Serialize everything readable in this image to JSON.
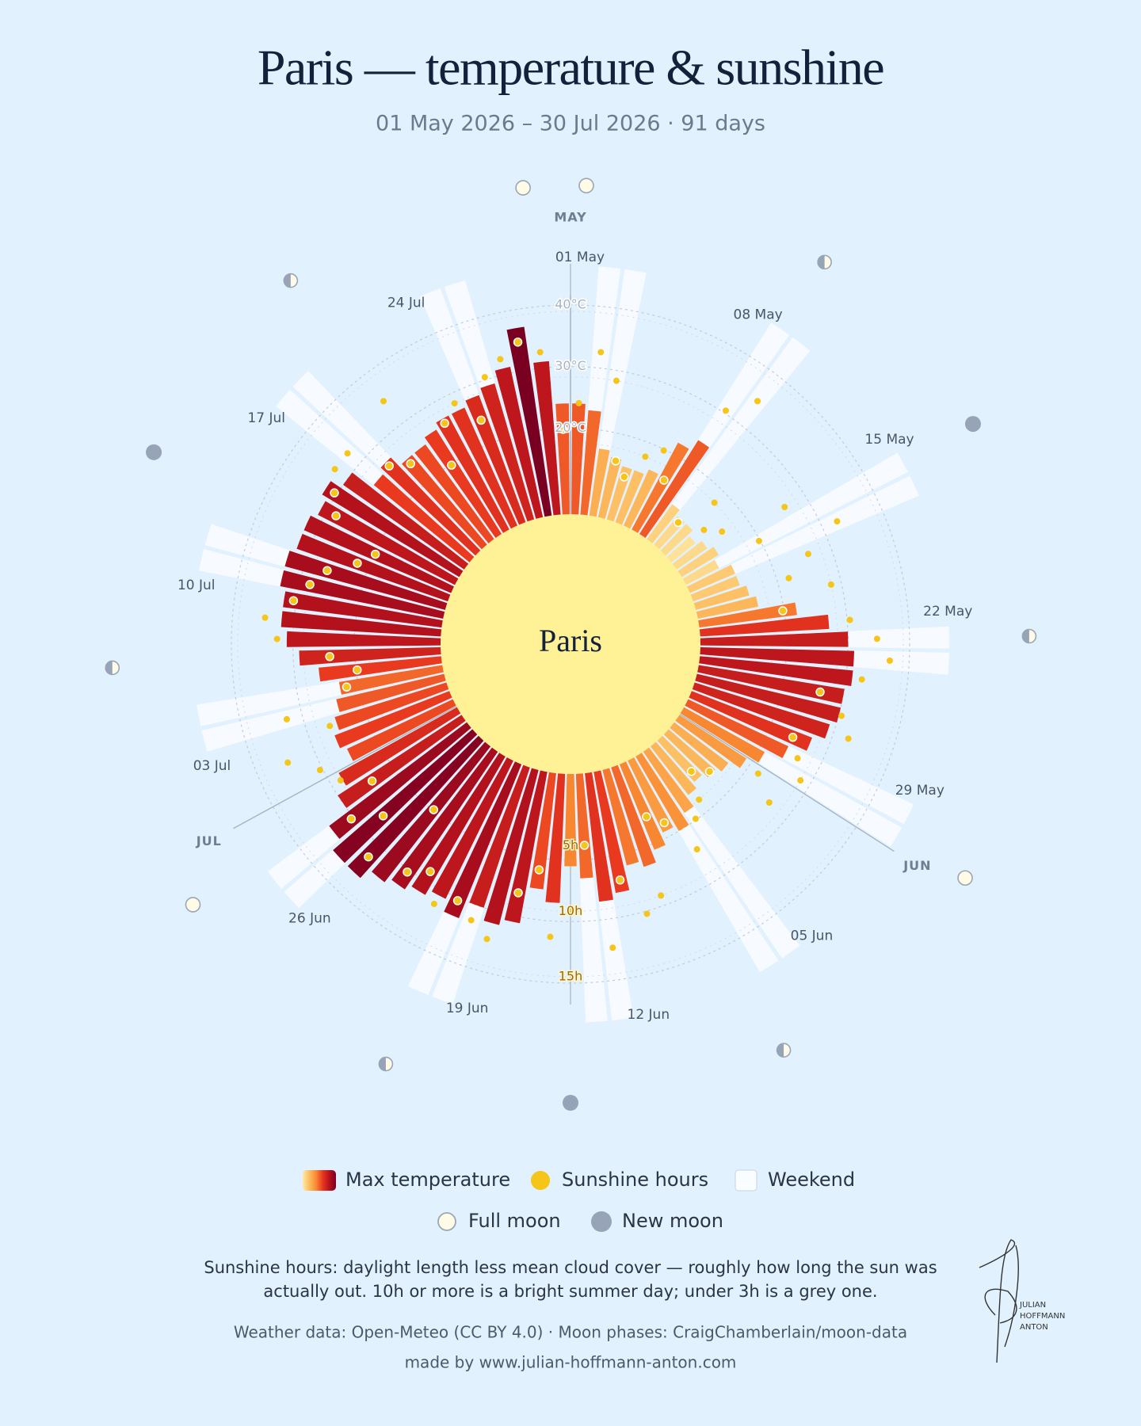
{
  "chart_data": {
    "type": "radial",
    "title": "Paris — temperature & sunshine",
    "subtitle": "01 May 2026 – 30 Jul 2026 · 91 days",
    "center_label": "Paris",
    "categories": [
      "01 May",
      null,
      null,
      null,
      null,
      null,
      null,
      "08 May",
      null,
      null,
      null,
      null,
      null,
      null,
      "15 May",
      null,
      null,
      null,
      null,
      null,
      null,
      "22 May",
      null,
      null,
      null,
      null,
      null,
      null,
      "29 May",
      null,
      null,
      null,
      null,
      null,
      null,
      "05 Jun",
      null,
      null,
      null,
      null,
      null,
      null,
      "12 Jun",
      null,
      null,
      null,
      null,
      null,
      null,
      "19 Jun",
      null,
      null,
      null,
      null,
      null,
      null,
      "26 Jun",
      null,
      null,
      null,
      null,
      null,
      null,
      "03 Jul",
      null,
      null,
      null,
      null,
      null,
      null,
      "10 Jul",
      null,
      null,
      null,
      null,
      null,
      null,
      "17 Jul",
      null,
      null,
      null,
      null,
      null,
      null,
      "24 Jul",
      null,
      null,
      null,
      null,
      null,
      null
    ],
    "months": {
      "labels": [
        "MAY",
        "JUN",
        "JUL"
      ],
      "days": [
        0,
        31,
        61
      ]
    },
    "series": [
      {
        "name": "Max temperature",
        "colors": [
          "#fdeaa4",
          "#fdbd60",
          "#f98a32",
          "#e8371f",
          "#b8121c",
          "#7a0022"
        ],
        "color_domain": [
          10,
          37
        ],
        "values": [
          24,
          23,
          17,
          16,
          15,
          15,
          16,
          22,
          24,
          13,
          12,
          12,
          11,
          12,
          13,
          12,
          14,
          14,
          15,
          16,
          22,
          27,
          30,
          31,
          31,
          30,
          30,
          29,
          27,
          24,
          21,
          19,
          17,
          16,
          15,
          16,
          18,
          20,
          19,
          21,
          23,
          22,
          26,
          27,
          23,
          21,
          27,
          25,
          31,
          32,
          30,
          33,
          31,
          32,
          33,
          34,
          36,
          36,
          34,
          30,
          28,
          25,
          26,
          25,
          24,
          23,
          26,
          29,
          31,
          32,
          32,
          33,
          33,
          32,
          32,
          31,
          32,
          30,
          26,
          27,
          25,
          25,
          26,
          27,
          27,
          28,
          29,
          31,
          37,
          31,
          24
        ]
      },
      {
        "name": "Sunshine hours",
        "color": "#f5c518",
        "axis": "y2",
        "values": [
          8,
          12,
          10,
          4,
          3,
          5,
          6,
          4,
          11,
          13,
          2,
          5,
          3,
          4,
          9,
          6,
          12,
          9,
          7,
          10,
          6,
          11,
          13,
          14,
          12,
          9,
          11,
          12,
          8,
          9,
          10,
          7,
          9,
          4,
          3,
          5,
          6,
          8,
          5,
          4,
          10,
          11,
          8,
          13,
          5,
          10,
          12,
          7,
          9,
          13,
          12,
          11,
          12,
          10,
          11,
          6,
          12,
          9,
          11,
          8,
          10,
          11,
          13,
          9,
          12,
          7,
          6,
          8,
          12,
          13,
          11,
          10,
          9,
          7,
          6,
          10,
          11,
          12,
          12,
          9,
          8,
          13,
          6,
          9,
          10,
          8,
          11,
          12,
          13,
          12,
          6
        ]
      }
    ],
    "ylim": [
      6,
      40
    ],
    "yticks": [
      {
        "value": 20,
        "label": "20°C"
      },
      {
        "value": 30,
        "label": "30°C"
      },
      {
        "value": 40,
        "label": "40°C"
      }
    ],
    "y2lim": [
      0,
      15
    ],
    "y2ticks": [
      {
        "value": 5,
        "label": "5h"
      },
      {
        "value": 10,
        "label": "10h"
      },
      {
        "value": 15,
        "label": "15h"
      }
    ],
    "weekend": {
      "name": "Weekend",
      "days": [
        1,
        2,
        8,
        9,
        15,
        16,
        22,
        23,
        29,
        30,
        36,
        37,
        43,
        44,
        50,
        51,
        57,
        58,
        64,
        65,
        71,
        72,
        78,
        79,
        85,
        86
      ]
    },
    "moons": {
      "full": {
        "name": "Full moon",
        "days": [
          0,
          30,
          59,
          89
        ]
      },
      "new": {
        "name": "New moon",
        "days": [
          15,
          45,
          74
        ]
      },
      "quarter_days": [
        8,
        22,
        38,
        51,
        67,
        81
      ]
    },
    "note": "Sunshine hours: daylight length less mean cloud cover — roughly how long the sun was actually out. 10h or more is a bright summer day; under 3h is a grey one.",
    "source": "Weather data: Open-Meteo (CC BY 4.0) · Moon phases: CraigChamberlain/moon-data",
    "credit": "made by www.julian-hoffmann-anton.com",
    "signature": [
      "JULIAN",
      "HOFFMANN",
      "ANTON"
    ]
  }
}
